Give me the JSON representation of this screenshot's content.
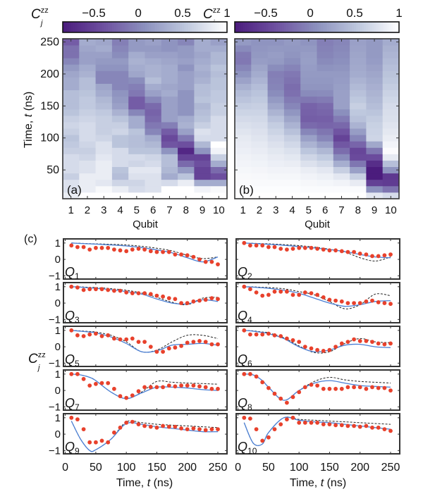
{
  "figure": {
    "colorbar_symbol": "C",
    "colorbar_sub": "j",
    "colorbar_sup": "zz",
    "panel_c_label": "(c)",
    "panel_c_ylabel_symbol": "C",
    "panel_c_ylabel_sub": "j",
    "panel_c_ylabel_sup": "zz",
    "time_axis_label_prefix": "Time, ",
    "time_axis_label_var": "t",
    "time_axis_label_suffix": " (ns)",
    "qubit_axis_label": "Qubit",
    "qubit_prefix": "Q"
  },
  "colors": {
    "cmap": [
      "#4b1c7d",
      "#6e50a0",
      "#8c91be",
      "#bec8de",
      "#ffffff"
    ],
    "experiment": "#e8412c",
    "model_solid": "#4a7fd4",
    "model_dashed": "#222222",
    "frame": "#333333"
  },
  "chart_data": [
    {
      "type": "heatmap",
      "panel_label": "(a)",
      "values_key": "experiment",
      "xlabel": "Qubit",
      "ylabel": "Time, t (ns)",
      "x_ticks": [
        "1",
        "2",
        "3",
        "4",
        "5",
        "6",
        "7",
        "8",
        "9",
        "10"
      ],
      "y_ticks": [
        "50",
        "100",
        "150",
        "200",
        "250"
      ],
      "y_tick_values": [
        50,
        100,
        150,
        200,
        250
      ],
      "ylim": [
        5,
        255
      ],
      "colorbar_ticks": [
        "−0.5",
        "0",
        "0.5",
        "1"
      ],
      "colorbar_tick_values": [
        -0.5,
        0,
        0.5,
        1
      ],
      "colorbar_range": [
        -0.85,
        1
      ]
    },
    {
      "type": "heatmap",
      "panel_label": "(b)",
      "values_key": "model_solid",
      "xlabel": "Qubit",
      "x_ticks": [
        "1",
        "2",
        "3",
        "4",
        "5",
        "6",
        "7",
        "8",
        "9",
        "10"
      ],
      "ylim": [
        5,
        255
      ],
      "colorbar_ticks": [
        "−0.5",
        "0",
        "0.5",
        "1"
      ],
      "colorbar_tick_values": [
        -0.5,
        0,
        0.5,
        1
      ],
      "colorbar_range": [
        -0.85,
        1
      ]
    },
    {
      "type": "line",
      "panel_label": "(c)",
      "xlabel": "Time, t (ns)",
      "ylabel": "C_j^zz",
      "xlim": [
        -3,
        265
      ],
      "ylim": [
        -1.2,
        1.25
      ],
      "x_ticks": [
        "0",
        "50",
        "100",
        "150",
        "200",
        "250"
      ],
      "x_tick_values": [
        0,
        50,
        100,
        150,
        200,
        250
      ],
      "y_ticks": [
        "−1",
        "0",
        "1"
      ],
      "y_tick_values": [
        -1,
        0,
        1
      ],
      "t_experiment": [
        10,
        20,
        30,
        40,
        50,
        60,
        70,
        80,
        90,
        100,
        110,
        120,
        130,
        140,
        150,
        160,
        170,
        180,
        190,
        200,
        210,
        220,
        230,
        240,
        250
      ],
      "t_model": [
        10,
        25,
        40,
        50,
        75,
        100,
        125,
        150,
        175,
        200,
        225,
        250
      ],
      "qubits": [
        {
          "name": "1",
          "experiment": [
            0.85,
            0.75,
            0.75,
            0.6,
            0.7,
            0.7,
            0.7,
            0.6,
            0.55,
            0.5,
            0.6,
            0.65,
            0.6,
            0.5,
            0.45,
            0.45,
            0.45,
            0.3,
            0.3,
            0.25,
            0.15,
            0.0,
            -0.15,
            -0.15,
            -0.3
          ],
          "model_solid": [
            1,
            0.97,
            0.95,
            0.93,
            0.88,
            0.82,
            0.72,
            0.58,
            0.4,
            0.1,
            -0.15,
            0.15
          ],
          "model_dashed": [
            1,
            0.98,
            0.96,
            0.95,
            0.92,
            0.88,
            0.8,
            0.68,
            0.52,
            0.25,
            0.05,
            0.15
          ]
        },
        {
          "name": "2",
          "experiment": [
            1,
            0.85,
            0.85,
            0.85,
            0.75,
            0.75,
            0.65,
            0.6,
            0.65,
            0.7,
            0.7,
            0.7,
            0.65,
            0.6,
            0.55,
            0.55,
            0.5,
            0.45,
            0.45,
            0.35,
            0.3,
            0.2,
            0.2,
            0.25,
            0.3
          ],
          "model_solid": [
            1,
            0.97,
            0.94,
            0.92,
            0.86,
            0.78,
            0.7,
            0.6,
            0.48,
            0.3,
            0.15,
            0.1
          ],
          "model_dashed": [
            1,
            0.98,
            0.96,
            0.95,
            0.9,
            0.84,
            0.75,
            0.62,
            0.45,
            0.1,
            -0.1,
            0.15
          ]
        },
        {
          "name": "3",
          "experiment": [
            1,
            0.95,
            0.8,
            0.85,
            0.85,
            0.85,
            0.8,
            0.75,
            0.75,
            0.65,
            0.6,
            0.6,
            0.6,
            0.55,
            0.45,
            0.4,
            0.3,
            0.25,
            0.0,
            0.0,
            0.1,
            0.15,
            0.2,
            0.3,
            0.25
          ],
          "model_solid": [
            1,
            0.97,
            0.93,
            0.9,
            0.82,
            0.7,
            0.55,
            0.25,
            0.0,
            -0.05,
            0.2,
            0.1
          ],
          "model_dashed": [
            1,
            0.99,
            0.96,
            0.95,
            0.88,
            0.78,
            0.62,
            0.35,
            0.05,
            -0.1,
            0.3,
            0.35
          ]
        },
        {
          "name": "4",
          "experiment": [
            1,
            0.85,
            0.65,
            0.45,
            0.5,
            0.7,
            0.7,
            0.7,
            0.5,
            0.5,
            0.65,
            0.6,
            0.5,
            0.35,
            0.2,
            0.15,
            0.1,
            0.0,
            0.0,
            0.0,
            0.1,
            0.15,
            0.05,
            0.0,
            -0.05
          ],
          "model_solid": [
            1,
            0.97,
            0.93,
            0.9,
            0.78,
            0.6,
            0.3,
            0.0,
            -0.2,
            -0.1,
            0.1,
            0.15
          ],
          "model_dashed": [
            1,
            0.99,
            0.96,
            0.95,
            0.87,
            0.7,
            0.5,
            0.1,
            -0.35,
            -0.1,
            0.55,
            0.45
          ]
        },
        {
          "name": "5",
          "experiment": [
            1,
            0.7,
            0.65,
            0.75,
            0.8,
            0.65,
            0.7,
            0.5,
            0.45,
            0.45,
            0.5,
            0.3,
            0.3,
            0.0,
            -0.3,
            -0.3,
            -0.1,
            -0.05,
            0.05,
            0.25,
            0.3,
            0.35,
            0.3,
            0.15,
            0.15
          ],
          "model_solid": [
            1,
            0.95,
            0.9,
            0.85,
            0.6,
            0.2,
            -0.3,
            -0.25,
            0.1,
            0.15,
            0.2,
            0.1
          ],
          "model_dashed": [
            1,
            0.97,
            0.93,
            0.9,
            0.7,
            0.3,
            -0.3,
            -0.2,
            0.3,
            0.7,
            0.7,
            0.5
          ]
        },
        {
          "name": "6",
          "experiment": [
            1,
            0.75,
            0.75,
            0.75,
            0.8,
            0.7,
            0.65,
            0.5,
            0.4,
            0.3,
            0.0,
            -0.1,
            -0.2,
            -0.25,
            -0.2,
            0.0,
            0.2,
            0.3,
            0.45,
            0.35,
            0.35,
            0.3,
            0.2,
            0.15,
            0.2
          ],
          "model_solid": [
            1,
            0.95,
            0.87,
            0.8,
            0.5,
            0.0,
            -0.3,
            -0.2,
            0.1,
            0.15,
            0.0,
            -0.05
          ],
          "model_dashed": [
            1,
            0.97,
            0.9,
            0.85,
            0.55,
            0.05,
            -0.35,
            -0.3,
            0.2,
            0.5,
            0.3,
            0.25
          ]
        },
        {
          "name": "7",
          "experiment": [
            1,
            1,
            0.7,
            0.3,
            0.4,
            0.45,
            0.45,
            0.1,
            -0.35,
            -0.45,
            -0.3,
            -0.05,
            0.2,
            0.2,
            0.2,
            0.2,
            0.3,
            0.25,
            0.3,
            0.3,
            0.3,
            0.25,
            0.2,
            0.1,
            0.1
          ],
          "model_solid": [
            1,
            0.95,
            0.8,
            0.6,
            -0.1,
            -0.5,
            -0.15,
            0.2,
            0.2,
            0.15,
            0.05,
            0.0
          ],
          "model_dashed": [
            1,
            0.95,
            0.8,
            0.6,
            -0.1,
            -0.5,
            -0.1,
            0.55,
            0.5,
            0.45,
            0.42,
            0.38
          ]
        },
        {
          "name": "8",
          "experiment": [
            1,
            1,
            0.85,
            0.5,
            0.15,
            -0.2,
            -0.5,
            -0.75,
            -0.4,
            -0.1,
            0.2,
            0.35,
            0.3,
            0.1,
            0.1,
            0.1,
            0.1,
            0.2,
            0.2,
            0.2,
            0.1,
            0.2,
            0.15,
            0.15,
            0.0
          ],
          "model_solid": [
            1,
            0.95,
            0.6,
            0.2,
            -0.6,
            0.0,
            0.45,
            0.6,
            0.45,
            0.3,
            0.25,
            0.2
          ],
          "model_dashed": [
            1,
            0.95,
            0.6,
            0.2,
            -0.6,
            0.0,
            0.55,
            0.8,
            0.65,
            0.55,
            0.5,
            0.45
          ]
        },
        {
          "name": "9",
          "experiment": [
            1,
            0.9,
            0.3,
            -0.5,
            -0.5,
            -0.4,
            -0.5,
            0.1,
            0.4,
            0.7,
            0.75,
            0.6,
            0.5,
            0.45,
            0.4,
            0.5,
            0.45,
            0.45,
            0.35,
            0.3,
            0.35,
            0.3,
            0.25,
            0.3,
            0.3
          ],
          "model_solid": [
            0.8,
            -0.3,
            -1.0,
            -0.95,
            -0.3,
            0.65,
            0.6,
            0.45,
            0.35,
            0.25,
            0.15,
            0.15
          ],
          "model_dashed": [
            0.8,
            -0.3,
            -1.0,
            -0.95,
            -0.3,
            0.75,
            0.7,
            0.6,
            0.55,
            0.5,
            0.45,
            0.4
          ]
        },
        {
          "name": "10",
          "experiment": [
            1,
            0.95,
            0.3,
            -0.4,
            -0.2,
            0.3,
            0.6,
            0.9,
            1.0,
            0.7,
            0.7,
            0.7,
            0.7,
            0.6,
            0.6,
            0.55,
            0.55,
            0.5,
            0.5,
            0.45,
            0.5,
            0.4,
            0.4,
            0.3,
            0.2
          ],
          "model_solid": [
            0.7,
            -0.55,
            -0.6,
            0.1,
            1.0,
            0.85,
            0.75,
            0.7,
            0.6,
            0.5,
            0.4,
            0.3
          ],
          "model_dashed": [
            0.7,
            -0.55,
            -0.6,
            0.1,
            1.0,
            0.9,
            0.85,
            0.8,
            0.75,
            0.7,
            0.65,
            0.6
          ]
        }
      ]
    }
  ]
}
